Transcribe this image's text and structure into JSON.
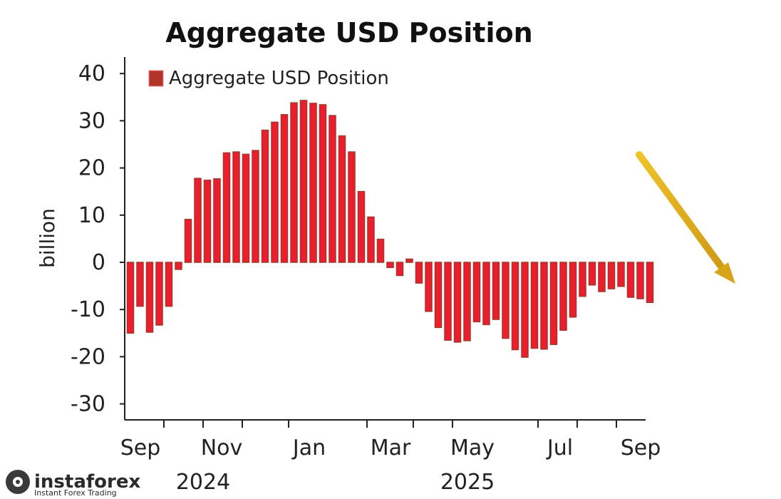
{
  "chart_data": {
    "type": "bar",
    "title": "Aggregate USD Position",
    "ylabel": "billion",
    "xlabel": "",
    "ylim": [
      -33,
      45
    ],
    "yticks": [
      40,
      30,
      20,
      10,
      0,
      -10,
      -20,
      -30
    ],
    "ytick_labels": [
      "40",
      "30",
      "20",
      "10",
      "0",
      "-10",
      "-20",
      "-30"
    ],
    "xtick_labels": [
      "Sep",
      "Nov",
      "Jan",
      "Mar",
      "May",
      "Jul",
      "Sep"
    ],
    "year_labels": [
      "2024",
      "2025"
    ],
    "legend": {
      "label": "Aggregate USD Position",
      "position": "top-left"
    },
    "grid": false,
    "series": [
      {
        "name": "Aggregate USD Position",
        "values": [
          -15,
          -9.3,
          -14.8,
          -13.3,
          -9.3,
          -1.5,
          9.1,
          17.8,
          17.4,
          17.7,
          23.2,
          23.4,
          22.9,
          23.7,
          28,
          29.7,
          31.3,
          33.8,
          34.3,
          33.7,
          33.4,
          31.1,
          26.8,
          23.4,
          15,
          9.6,
          4.9,
          -1.1,
          -2.8,
          0.7,
          -4.4,
          -10.4,
          -13.8,
          -16.5,
          -16.9,
          -16.6,
          -12.6,
          -13.2,
          -12.1,
          -16.1,
          -18.5,
          -20.1,
          -18.2,
          -18.4,
          -17.4,
          -14.4,
          -11.6,
          -7.2,
          -4.8,
          -6.2,
          -5.6,
          -5.1,
          -7.4,
          -7.7,
          -8.5
        ]
      }
    ],
    "colors": {
      "bar_fill": "#ee1d2e",
      "bar_edge": "#a2372b",
      "axis": "#222222"
    }
  },
  "annotations": {
    "trend_arrow": "arrow-down-right",
    "arrow_color": "#e2b01d"
  },
  "watermark": {
    "brand": "instaforex",
    "tagline": "Instant Forex Trading"
  }
}
